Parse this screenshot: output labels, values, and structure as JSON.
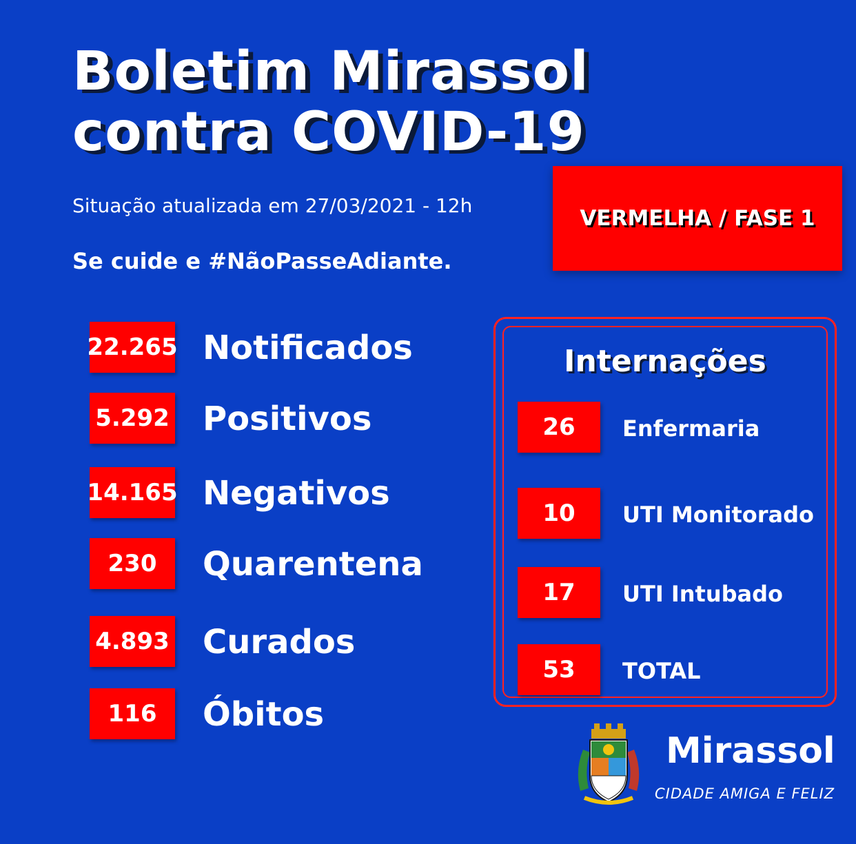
{
  "title": {
    "line1": "Boletim  Mirassol",
    "line2": "contra COVID-19"
  },
  "subtitle": "Situação atualizada em 27/03/2021 - 12h",
  "slogan": "Se cuide e #NãoPasseAdiante.",
  "phase": "VERMELHA / FASE 1",
  "stats": [
    {
      "value": "22.265",
      "label": "Notificados"
    },
    {
      "value": "5.292",
      "label": "Positivos"
    },
    {
      "value": "14.165",
      "label": "Negativos"
    },
    {
      "value": "230",
      "label": "Quarentena"
    },
    {
      "value": "4.893",
      "label": "Curados"
    },
    {
      "value": "116",
      "label": "Óbitos"
    }
  ],
  "internacoes": {
    "title": "Internações",
    "items": [
      {
        "value": "26",
        "label": "Enfermaria"
      },
      {
        "value": "10",
        "label": "UTI Monitorado"
      },
      {
        "value": "17",
        "label": "UTI Intubado"
      },
      {
        "value": "53",
        "label": "TOTAL"
      }
    ]
  },
  "footer": {
    "name": "Mirassol",
    "tagline": "CIDADE AMIGA E FELIZ"
  },
  "colors": {
    "background": "#0a3fc6",
    "accent": "#ff0000"
  }
}
